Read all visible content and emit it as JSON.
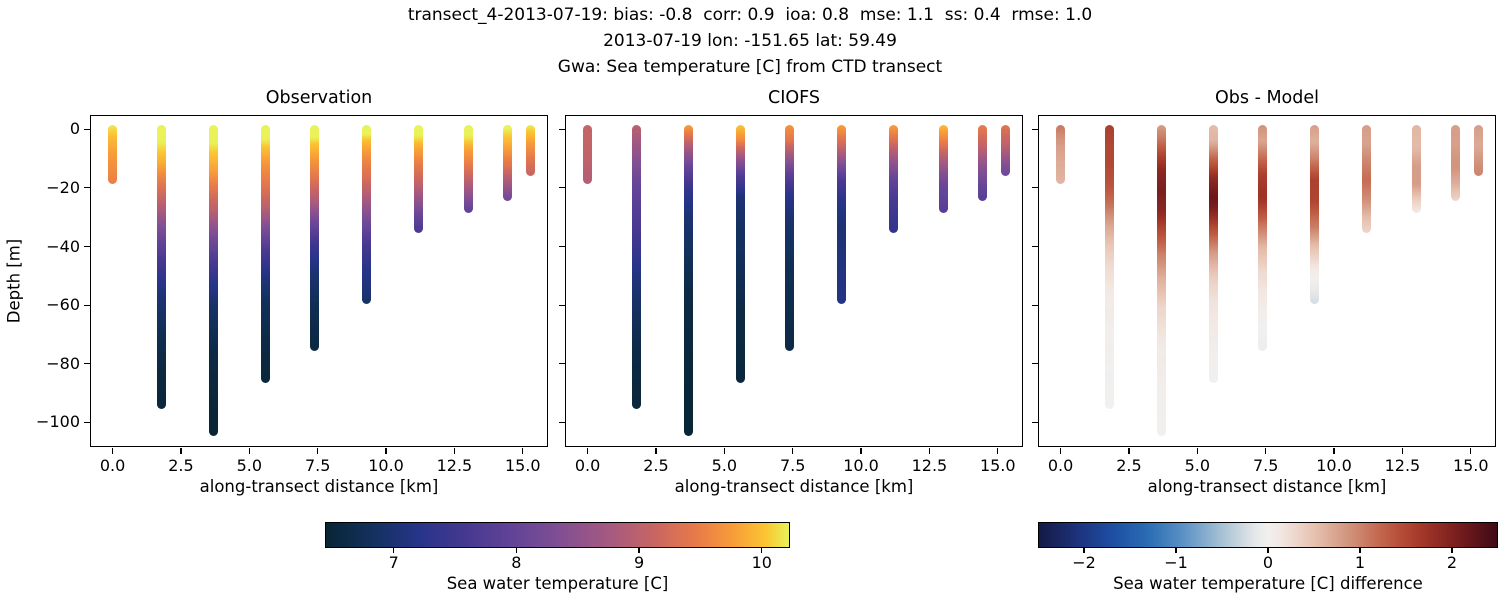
{
  "header": {
    "line1": "transect_4-2013-07-19: bias: -0.8  corr: 0.9  ioa: 0.8  mse: 1.1  ss: 0.4  rmse: 1.0",
    "line2": "2013-07-19 lon: -151.65 lat: 59.49",
    "line3": "Gwa: Sea temperature [C] from CTD transect"
  },
  "panels": [
    {
      "title": "Observation"
    },
    {
      "title": "CIOFS"
    },
    {
      "title": "Obs - Model"
    }
  ],
  "axes": {
    "xlabel": "along-transect distance [km]",
    "ylabel": "Depth [m]",
    "xlim": [
      -0.79,
      15.96
    ],
    "ylim": [
      4.5,
      -108.7
    ],
    "xticks": {
      "values": [
        0,
        2.5,
        5,
        7.5,
        10,
        12.5,
        15
      ],
      "labels": [
        "0.0",
        "2.5",
        "5.0",
        "7.5",
        "10.0",
        "12.5",
        "15.0"
      ]
    },
    "yticks": {
      "values": [
        0,
        -20,
        -40,
        -60,
        -80,
        -100
      ],
      "labels": [
        "0",
        "−20",
        "−40",
        "−60",
        "−80",
        "−100"
      ]
    }
  },
  "colorbars": [
    {
      "label": "Sea water temperature [C]",
      "tick_labels": [
        "7",
        "8",
        "9",
        "10"
      ],
      "tick_values": [
        7,
        8,
        9,
        10
      ],
      "vmin": 6.44,
      "vmax": 10.23,
      "cmap": "thermal"
    },
    {
      "label": "Sea water temperature [C] difference",
      "tick_labels": [
        "−2",
        "−1",
        "0",
        "1",
        "2"
      ],
      "tick_values": [
        -2,
        -1,
        0,
        1,
        2
      ],
      "vmin": -2.5,
      "vmax": 2.5,
      "cmap": "balance"
    }
  ],
  "colormaps": {
    "thermal": [
      [
        0.0,
        "#082534"
      ],
      [
        0.1,
        "#13315e"
      ],
      [
        0.2,
        "#273489"
      ],
      [
        0.3,
        "#453890"
      ],
      [
        0.4,
        "#614397"
      ],
      [
        0.5,
        "#7f4e94"
      ],
      [
        0.62,
        "#a85a7e"
      ],
      [
        0.72,
        "#cc6760"
      ],
      [
        0.8,
        "#e87b49"
      ],
      [
        0.88,
        "#f89c38"
      ],
      [
        0.95,
        "#fbc533"
      ],
      [
        1.0,
        "#e9f259"
      ]
    ],
    "balance": [
      [
        0.0,
        "#141a44"
      ],
      [
        0.08,
        "#1d3179"
      ],
      [
        0.16,
        "#1d4ea4"
      ],
      [
        0.24,
        "#2a6db4"
      ],
      [
        0.32,
        "#5e94c5"
      ],
      [
        0.4,
        "#a7c2d4"
      ],
      [
        0.47,
        "#e4e7e9"
      ],
      [
        0.5,
        "#f1f0ef"
      ],
      [
        0.53,
        "#f2e6e0"
      ],
      [
        0.6,
        "#e7c2b1"
      ],
      [
        0.68,
        "#d1917a"
      ],
      [
        0.76,
        "#c05c43"
      ],
      [
        0.84,
        "#a23527"
      ],
      [
        0.92,
        "#741b1d"
      ],
      [
        1.0,
        "#3e0a15"
      ]
    ]
  },
  "chart_data": {
    "type": "scatter",
    "description": "CTD temperature profiles along transect; three panels: observed temperature, CIOFS model temperature, and obs-model difference. Profiles are [depth_m, temp_C] pairs.",
    "stations": [
      {
        "x_km": 0.0,
        "obs": [
          [
            0,
            10.2
          ],
          [
            -4,
            9.95
          ],
          [
            -9,
            9.75
          ],
          [
            -17,
            9.5
          ]
        ],
        "model": [
          [
            0,
            9.1
          ],
          [
            -8,
            9.05
          ],
          [
            -17,
            8.9
          ]
        ]
      },
      {
        "x_km": 1.8,
        "obs": [
          [
            0,
            10.6
          ],
          [
            -7,
            10.15
          ],
          [
            -13,
            9.85
          ],
          [
            -19,
            9.45
          ],
          [
            -26,
            9.0
          ],
          [
            -33,
            8.4
          ],
          [
            -40,
            7.9
          ],
          [
            -48,
            7.4
          ],
          [
            -57,
            7.0
          ],
          [
            -70,
            6.7
          ],
          [
            -82,
            6.55
          ],
          [
            -94,
            6.5
          ]
        ],
        "model": [
          [
            0,
            9.0
          ],
          [
            -10,
            8.5
          ],
          [
            -20,
            8.0
          ],
          [
            -30,
            7.75
          ],
          [
            -40,
            7.45
          ],
          [
            -50,
            7.1
          ],
          [
            -60,
            6.85
          ],
          [
            -75,
            6.6
          ],
          [
            -94,
            6.5
          ]
        ]
      },
      {
        "x_km": 3.7,
        "obs": [
          [
            0,
            10.6
          ],
          [
            -8,
            10.1
          ],
          [
            -15,
            9.8
          ],
          [
            -22,
            9.35
          ],
          [
            -28,
            9.0
          ],
          [
            -35,
            8.4
          ],
          [
            -43,
            7.8
          ],
          [
            -51,
            7.3
          ],
          [
            -60,
            6.9
          ],
          [
            -75,
            6.6
          ],
          [
            -90,
            6.5
          ],
          [
            -103,
            6.45
          ]
        ],
        "model": [
          [
            0,
            9.8
          ],
          [
            -4,
            9.3
          ],
          [
            -9,
            8.6
          ],
          [
            -15,
            7.9
          ],
          [
            -22,
            7.3
          ],
          [
            -30,
            7.0
          ],
          [
            -42,
            6.8
          ],
          [
            -55,
            6.6
          ],
          [
            -80,
            6.5
          ],
          [
            -103,
            6.45
          ]
        ]
      },
      {
        "x_km": 5.6,
        "obs": [
          [
            0,
            10.6
          ],
          [
            -7,
            10.05
          ],
          [
            -13,
            9.7
          ],
          [
            -20,
            9.4
          ],
          [
            -27,
            9.0
          ],
          [
            -34,
            8.3
          ],
          [
            -42,
            7.6
          ],
          [
            -50,
            7.1
          ],
          [
            -58,
            6.8
          ],
          [
            -72,
            6.6
          ],
          [
            -85,
            6.5
          ]
        ],
        "model": [
          [
            0,
            10.05
          ],
          [
            -5,
            9.6
          ],
          [
            -11,
            8.6
          ],
          [
            -17,
            7.7
          ],
          [
            -24,
            7.0
          ],
          [
            -32,
            6.85
          ],
          [
            -45,
            6.75
          ],
          [
            -60,
            6.6
          ],
          [
            -85,
            6.5
          ]
        ]
      },
      {
        "x_km": 7.4,
        "obs": [
          [
            0,
            10.6
          ],
          [
            -6,
            10.05
          ],
          [
            -12,
            9.7
          ],
          [
            -18,
            9.35
          ],
          [
            -25,
            8.85
          ],
          [
            -32,
            8.1
          ],
          [
            -40,
            7.4
          ],
          [
            -48,
            7.0
          ],
          [
            -60,
            6.7
          ],
          [
            -74,
            6.55
          ]
        ],
        "model": [
          [
            0,
            9.7
          ],
          [
            -5,
            9.4
          ],
          [
            -10,
            8.7
          ],
          [
            -16,
            7.9
          ],
          [
            -23,
            7.25
          ],
          [
            -31,
            6.95
          ],
          [
            -45,
            6.75
          ],
          [
            -60,
            6.65
          ],
          [
            -74,
            6.6
          ]
        ]
      },
      {
        "x_km": 9.3,
        "obs": [
          [
            0,
            10.6
          ],
          [
            -5,
            10.0
          ],
          [
            -11,
            9.6
          ],
          [
            -17,
            9.3
          ],
          [
            -24,
            8.8
          ],
          [
            -31,
            8.2
          ],
          [
            -39,
            7.6
          ],
          [
            -47,
            7.2
          ],
          [
            -58,
            6.9
          ]
        ],
        "model": [
          [
            0,
            9.8
          ],
          [
            -6,
            9.25
          ],
          [
            -12,
            8.45
          ],
          [
            -18,
            7.65
          ],
          [
            -25,
            7.2
          ],
          [
            -33,
            7.0
          ],
          [
            -45,
            7.1
          ],
          [
            -58,
            7.15
          ]
        ]
      },
      {
        "x_km": 11.2,
        "obs": [
          [
            0,
            10.6
          ],
          [
            -6,
            9.95
          ],
          [
            -12,
            9.5
          ],
          [
            -18,
            9.1
          ],
          [
            -24,
            8.5
          ],
          [
            -29,
            8.0
          ],
          [
            -34,
            7.6
          ]
        ],
        "model": [
          [
            0,
            9.8
          ],
          [
            -5,
            9.3
          ],
          [
            -11,
            8.6
          ],
          [
            -17,
            8.0
          ],
          [
            -23,
            7.65
          ],
          [
            -29,
            7.45
          ],
          [
            -34,
            7.3
          ]
        ]
      },
      {
        "x_km": 13.0,
        "obs": [
          [
            0,
            10.6
          ],
          [
            -7,
            9.85
          ],
          [
            -13,
            9.4
          ],
          [
            -19,
            8.8
          ],
          [
            -24,
            8.2
          ],
          [
            -27,
            7.9
          ]
        ],
        "model": [
          [
            0,
            10.0
          ],
          [
            -6,
            9.4
          ],
          [
            -12,
            8.7
          ],
          [
            -18,
            8.1
          ],
          [
            -24,
            7.9
          ],
          [
            -27,
            7.8
          ]
        ]
      },
      {
        "x_km": 14.45,
        "obs": [
          [
            0,
            10.3
          ],
          [
            -7,
            9.8
          ],
          [
            -13,
            9.3
          ],
          [
            -18,
            8.7
          ],
          [
            -23,
            8.1
          ]
        ],
        "model": [
          [
            0,
            9.5
          ],
          [
            -6,
            9.1
          ],
          [
            -12,
            8.5
          ],
          [
            -18,
            8.05
          ],
          [
            -23,
            7.8
          ]
        ]
      },
      {
        "x_km": 15.3,
        "obs": [
          [
            0,
            10.2
          ],
          [
            -6,
            9.7
          ],
          [
            -11,
            9.3
          ],
          [
            -14.5,
            9.1
          ]
        ],
        "model": [
          [
            0,
            9.4
          ],
          [
            -6,
            9.0
          ],
          [
            -11,
            8.4
          ],
          [
            -14.5,
            8.1
          ]
        ]
      }
    ]
  }
}
